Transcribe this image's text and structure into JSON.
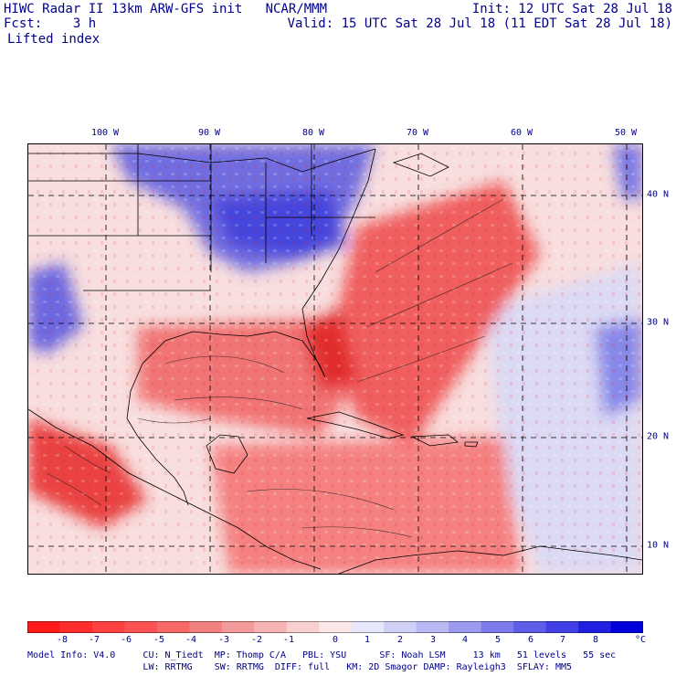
{
  "header": {
    "title_line": "HIWC Radar II 13km ARW-GFS init   NCAR/MMM",
    "fcst_line": "Fcst:    3 h",
    "field": "Lifted index",
    "init": "Init: 12 UTC Sat 28 Jul 18",
    "valid": "Valid: 15 UTC Sat 28 Jul 18 (11 EDT Sat 28 Jul 18)"
  },
  "map": {
    "lon_labels": [
      "100 W",
      "90 W",
      "80 W",
      "70 W",
      "60 W",
      "50 W"
    ],
    "lat_labels": [
      "40 N",
      "30 N",
      "20 N",
      "10 N"
    ],
    "grid_style": "dashed",
    "field_colors": {
      "negative": "#e03030",
      "neutral": "#f5f0f0",
      "positive": "#3c3cdc"
    }
  },
  "colorbar": {
    "ticks": [
      "-8",
      "-7",
      "-6",
      "-5",
      "-4",
      "-3",
      "-2",
      "-1",
      "0",
      "1",
      "2",
      "3",
      "4",
      "5",
      "6",
      "7",
      "8"
    ],
    "unit": "°C",
    "colors": [
      "#ff1a1a",
      "#ff2d2d",
      "#ff4040",
      "#fb5353",
      "#f76868",
      "#f38080",
      "#f49a9a",
      "#f6b4b4",
      "#f9d0d0",
      "#fce8e8",
      "#e8e8fc",
      "#d0d0f7",
      "#b8b8f3",
      "#9a9aef",
      "#7c7cec",
      "#5e5ee9",
      "#4040e6",
      "#2020e2",
      "#0000dd"
    ]
  },
  "model_info": {
    "line1": "Model Info: V4.0     CU: N_Tiedt  MP: Thomp C/A   PBL: YSU      SF: Noah LSM     13 km   51 levels   55 sec",
    "line2": "                     LW: RRTMG    SW: RRTMG  DIFF: full   KM: 2D Smagor DAMP: Rayleigh3  SFLAY: MM5"
  }
}
